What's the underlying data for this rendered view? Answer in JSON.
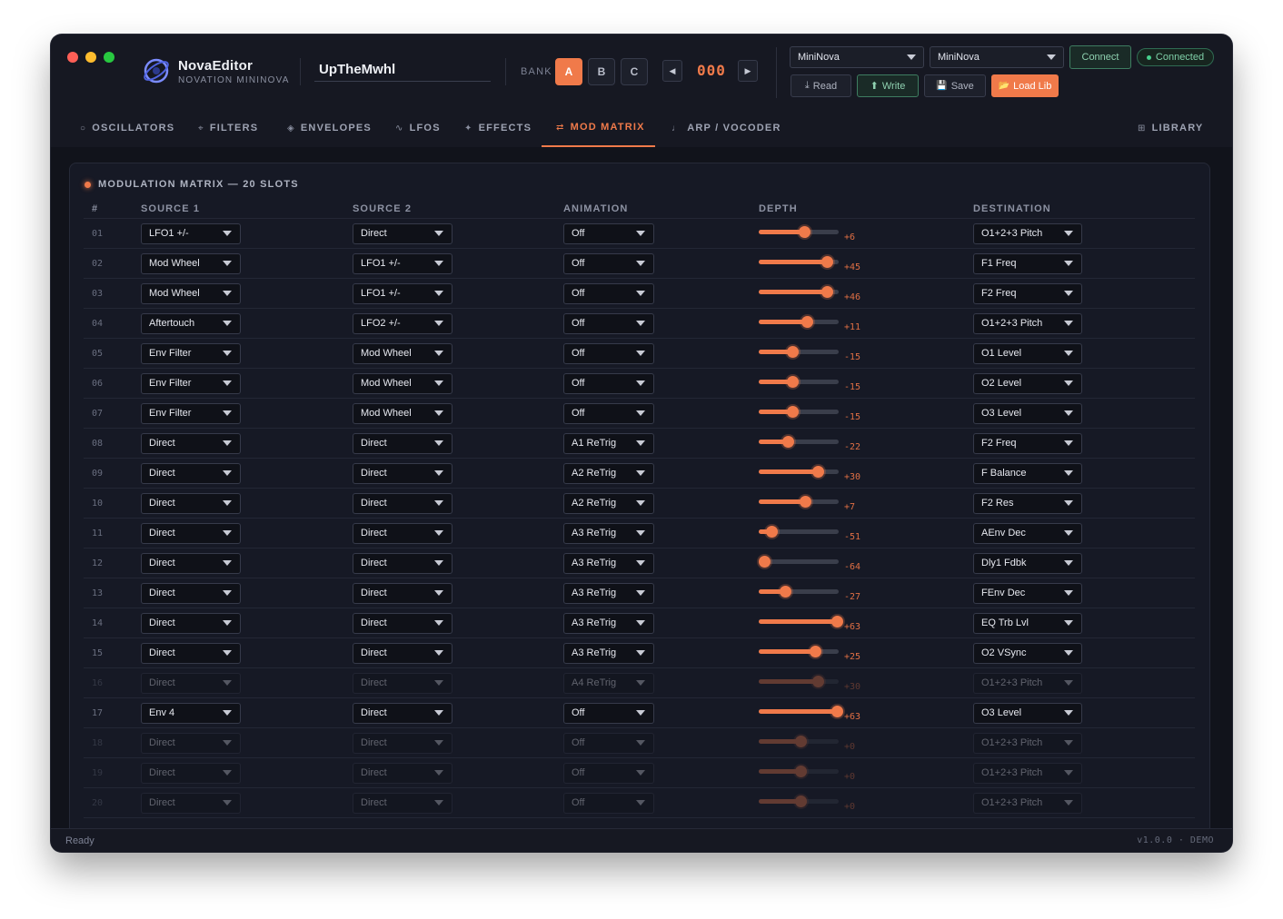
{
  "app": {
    "name": "NovaEditor",
    "subtitle": "NOVATION MININOVA",
    "patch_name": "UpTheMwhl"
  },
  "bank": {
    "label": "BANK",
    "buttons": [
      "A",
      "B",
      "C"
    ],
    "active": "A",
    "prev_icon": "◀",
    "next_icon": "▶",
    "program_number": "000"
  },
  "midi": {
    "input_device": "MiniNova",
    "output_device": "MiniNova",
    "connect_label": "Connect",
    "status_label": "Connected",
    "status_color": "#46d08d"
  },
  "actions": {
    "read": "Read",
    "read_icon": "⤓",
    "write": "Write",
    "write_icon": "⬆",
    "save": "Save",
    "save_icon": "💾",
    "load_lib": "Load Lib",
    "load_icon": "📂"
  },
  "tabs": [
    {
      "label": "OSCILLATORS",
      "icon": "○"
    },
    {
      "label": "FILTERS",
      "icon": "⌖"
    },
    {
      "label": "ENVELOPES",
      "icon": "◈"
    },
    {
      "label": "LFOS",
      "icon": "∿"
    },
    {
      "label": "EFFECTS",
      "icon": "✦"
    },
    {
      "label": "MOD MATRIX",
      "icon": "⇄"
    },
    {
      "label": "ARP / VOCODER",
      "icon": "♩"
    },
    {
      "label": "LIBRARY",
      "icon": "⊞"
    }
  ],
  "active_tab": "MOD MATRIX",
  "matrix": {
    "title": "MODULATION MATRIX — 20 SLOTS",
    "columns": {
      "num": "#",
      "source1": "SOURCE 1",
      "source2": "SOURCE 2",
      "animation": "ANIMATION",
      "depth": "DEPTH",
      "destination": "DESTINATION"
    },
    "depth_range": [
      -64,
      63
    ],
    "rows": [
      {
        "num": "01",
        "source1": "LFO1 +/-",
        "source2": "Direct",
        "animation": "Off",
        "depth": 6,
        "depth_label": "+6",
        "destination": "O1+2+3 Pitch",
        "active": true
      },
      {
        "num": "02",
        "source1": "Mod Wheel",
        "source2": "LFO1 +/-",
        "animation": "Off",
        "depth": 45,
        "depth_label": "+45",
        "destination": "F1 Freq",
        "active": true
      },
      {
        "num": "03",
        "source1": "Mod Wheel",
        "source2": "LFO1 +/-",
        "animation": "Off",
        "depth": 46,
        "depth_label": "+46",
        "destination": "F2 Freq",
        "active": true
      },
      {
        "num": "04",
        "source1": "Aftertouch",
        "source2": "LFO2 +/-",
        "animation": "Off",
        "depth": 11,
        "depth_label": "+11",
        "destination": "O1+2+3 Pitch",
        "active": true
      },
      {
        "num": "05",
        "source1": "Env Filter",
        "source2": "Mod Wheel",
        "animation": "Off",
        "depth": -15,
        "depth_label": "-15",
        "destination": "O1 Level",
        "active": true
      },
      {
        "num": "06",
        "source1": "Env Filter",
        "source2": "Mod Wheel",
        "animation": "Off",
        "depth": -15,
        "depth_label": "-15",
        "destination": "O2 Level",
        "active": true
      },
      {
        "num": "07",
        "source1": "Env Filter",
        "source2": "Mod Wheel",
        "animation": "Off",
        "depth": -15,
        "depth_label": "-15",
        "destination": "O3 Level",
        "active": true
      },
      {
        "num": "08",
        "source1": "Direct",
        "source2": "Direct",
        "animation": "A1 ReTrig",
        "depth": -22,
        "depth_label": "-22",
        "destination": "F2 Freq",
        "active": true
      },
      {
        "num": "09",
        "source1": "Direct",
        "source2": "Direct",
        "animation": "A2 ReTrig",
        "depth": 30,
        "depth_label": "+30",
        "destination": "F Balance",
        "active": true
      },
      {
        "num": "10",
        "source1": "Direct",
        "source2": "Direct",
        "animation": "A2 ReTrig",
        "depth": 7,
        "depth_label": "+7",
        "destination": "F2 Res",
        "active": true
      },
      {
        "num": "11",
        "source1": "Direct",
        "source2": "Direct",
        "animation": "A3 ReTrig",
        "depth": -51,
        "depth_label": "-51",
        "destination": "AEnv Dec",
        "active": true
      },
      {
        "num": "12",
        "source1": "Direct",
        "source2": "Direct",
        "animation": "A3 ReTrig",
        "depth": -64,
        "depth_label": "-64",
        "destination": "Dly1 Fdbk",
        "active": true
      },
      {
        "num": "13",
        "source1": "Direct",
        "source2": "Direct",
        "animation": "A3 ReTrig",
        "depth": -27,
        "depth_label": "-27",
        "destination": "FEnv Dec",
        "active": true
      },
      {
        "num": "14",
        "source1": "Direct",
        "source2": "Direct",
        "animation": "A3 ReTrig",
        "depth": 63,
        "depth_label": "+63",
        "destination": "EQ Trb Lvl",
        "active": true
      },
      {
        "num": "15",
        "source1": "Direct",
        "source2": "Direct",
        "animation": "A3 ReTrig",
        "depth": 25,
        "depth_label": "+25",
        "destination": "O2 VSync",
        "active": true
      },
      {
        "num": "16",
        "source1": "Direct",
        "source2": "Direct",
        "animation": "A4 ReTrig",
        "depth": 30,
        "depth_label": "+30",
        "destination": "O1+2+3 Pitch",
        "active": false
      },
      {
        "num": "17",
        "source1": "Env 4",
        "source2": "Direct",
        "animation": "Off",
        "depth": 63,
        "depth_label": "+63",
        "destination": "O3 Level",
        "active": true
      },
      {
        "num": "18",
        "source1": "Direct",
        "source2": "Direct",
        "animation": "Off",
        "depth": 0,
        "depth_label": "+0",
        "destination": "O1+2+3 Pitch",
        "active": false
      },
      {
        "num": "19",
        "source1": "Direct",
        "source2": "Direct",
        "animation": "Off",
        "depth": 0,
        "depth_label": "+0",
        "destination": "O1+2+3 Pitch",
        "active": false
      },
      {
        "num": "20",
        "source1": "Direct",
        "source2": "Direct",
        "animation": "Off",
        "depth": 0,
        "depth_label": "+0",
        "destination": "O1+2+3 Pitch",
        "active": false
      }
    ]
  },
  "statusbar": {
    "left": "Ready",
    "right": "v1.0.0 · DEMO"
  },
  "colors": {
    "accent": "#f07a4a",
    "connected": "#46d08d",
    "background": "#161822"
  }
}
